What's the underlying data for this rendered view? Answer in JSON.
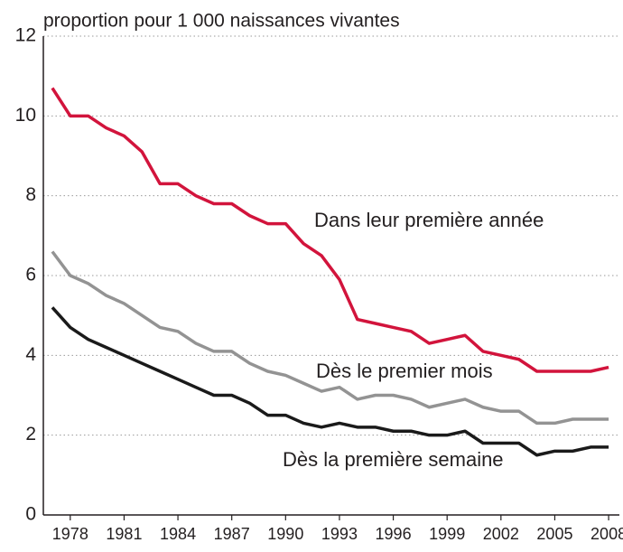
{
  "chart_data": {
    "type": "line",
    "y_label": "proportion pour 1 000 naissances vivantes",
    "x": [
      1977,
      1978,
      1979,
      1980,
      1981,
      1982,
      1983,
      1984,
      1985,
      1986,
      1987,
      1988,
      1989,
      1990,
      1991,
      1992,
      1993,
      1994,
      1995,
      1996,
      1997,
      1998,
      1999,
      2000,
      2001,
      2002,
      2003,
      2004,
      2005,
      2006,
      2007,
      2008
    ],
    "series": [
      {
        "name": "Dans leur première année",
        "color": "#d2143c",
        "values": [
          10.7,
          10.0,
          10.0,
          9.7,
          9.5,
          9.1,
          8.3,
          8.3,
          8.0,
          7.8,
          7.8,
          7.5,
          7.3,
          7.3,
          6.8,
          6.5,
          5.9,
          4.9,
          4.8,
          4.7,
          4.6,
          4.3,
          4.4,
          4.5,
          4.1,
          4.0,
          3.9,
          3.6,
          3.6,
          3.6,
          3.6,
          3.7
        ]
      },
      {
        "name": "Dès le premier mois",
        "color": "#939393",
        "values": [
          6.6,
          6.0,
          5.8,
          5.5,
          5.3,
          5.0,
          4.7,
          4.6,
          4.3,
          4.1,
          4.1,
          3.8,
          3.6,
          3.5,
          3.3,
          3.1,
          3.2,
          2.9,
          3.0,
          3.0,
          2.9,
          2.7,
          2.8,
          2.9,
          2.7,
          2.6,
          2.6,
          2.3,
          2.3,
          2.4,
          2.4,
          2.4
        ]
      },
      {
        "name": "Dès la première semaine",
        "color": "#1a1a1a",
        "values": [
          5.2,
          4.7,
          4.4,
          4.2,
          4.0,
          3.8,
          3.6,
          3.4,
          3.2,
          3.0,
          3.0,
          2.8,
          2.5,
          2.5,
          2.3,
          2.2,
          2.3,
          2.2,
          2.2,
          2.1,
          2.1,
          2.0,
          2.0,
          2.1,
          1.8,
          1.8,
          1.8,
          1.5,
          1.6,
          1.6,
          1.7,
          1.7
        ]
      }
    ],
    "xlim": [
      1976.5,
      2008.6
    ],
    "xticks": [
      1978,
      1981,
      1984,
      1987,
      1990,
      1993,
      1996,
      1999,
      2002,
      2005,
      2008
    ],
    "ylim": [
      0,
      12
    ],
    "yticks": [
      0,
      2,
      4,
      6,
      8,
      10,
      12
    ],
    "grid": true
  }
}
